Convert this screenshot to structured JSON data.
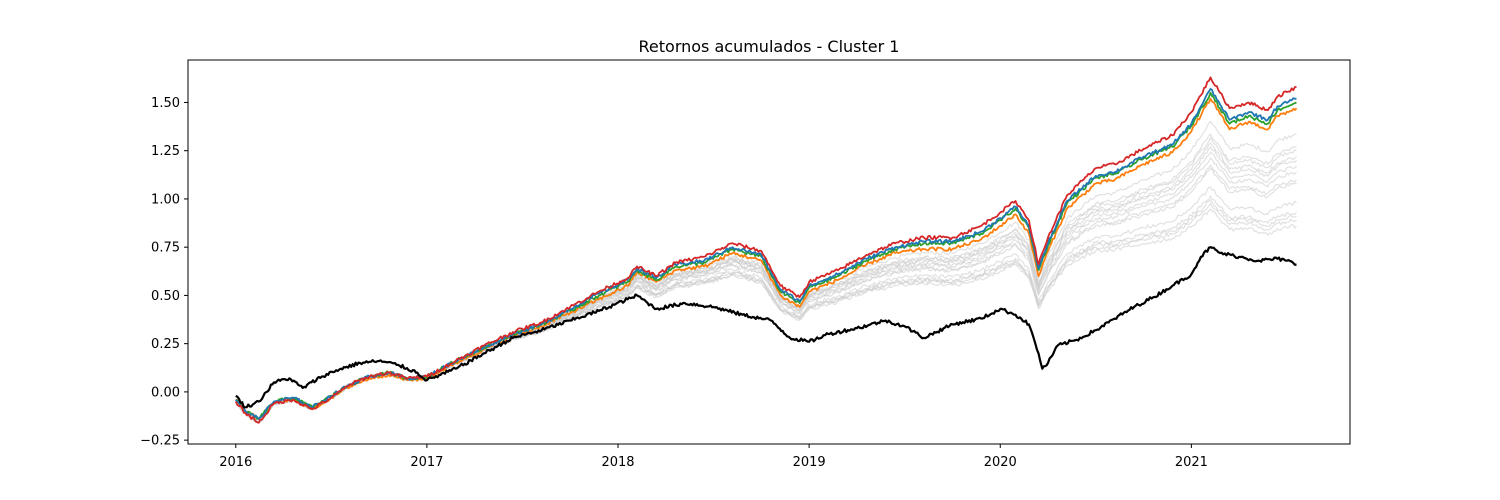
{
  "chart_data": {
    "type": "line",
    "title": "Retornos acumulados - Cluster 1",
    "xlabel": "",
    "ylabel": "",
    "xlim": [
      2015.75,
      2021.83
    ],
    "ylim": [
      -0.27,
      1.72
    ],
    "x_ticks": [
      2016,
      2017,
      2018,
      2019,
      2020,
      2021
    ],
    "x_tick_labels": [
      "2016",
      "2017",
      "2018",
      "2019",
      "2020",
      "2021"
    ],
    "y_ticks": [
      -0.25,
      0.0,
      0.25,
      0.5,
      0.75,
      1.0,
      1.25,
      1.5
    ],
    "y_tick_labels": [
      "−0.25",
      "0.00",
      "0.25",
      "0.50",
      "0.75",
      "1.00",
      "1.25",
      "1.50"
    ],
    "legend": "none",
    "grid": false,
    "background_series": {
      "color": "#c8c8c8",
      "count": 14,
      "end_values": [
        1.34,
        1.27,
        1.25,
        1.22,
        1.2,
        1.17,
        1.14,
        1.1,
        1.08,
        0.98,
        0.93,
        0.91,
        0.89,
        0.86
      ]
    },
    "series": [
      {
        "color": "#000000",
        "x": [
          2016.0,
          2016.05,
          2016.12,
          2016.2,
          2016.28,
          2016.35,
          2016.45,
          2016.55,
          2016.65,
          2016.75,
          2016.85,
          2016.95,
          2017.0,
          2017.15,
          2017.3,
          2017.45,
          2017.6,
          2017.75,
          2017.9,
          2018.05,
          2018.1,
          2018.2,
          2018.35,
          2018.5,
          2018.65,
          2018.8,
          2018.9,
          2019.0,
          2019.1,
          2019.25,
          2019.4,
          2019.5,
          2019.6,
          2019.75,
          2019.9,
          2020.0,
          2020.08,
          2020.15,
          2020.2,
          2020.22,
          2020.25,
          2020.3,
          2020.4,
          2020.5,
          2020.6,
          2020.7,
          2020.8,
          2020.9,
          2021.0,
          2021.05,
          2021.1,
          2021.15,
          2021.25,
          2021.35,
          2021.45,
          2021.5,
          2021.55
        ],
        "y": [
          -0.02,
          -0.08,
          -0.05,
          0.05,
          0.07,
          0.02,
          0.08,
          0.12,
          0.15,
          0.16,
          0.14,
          0.1,
          0.06,
          0.12,
          0.2,
          0.28,
          0.32,
          0.37,
          0.42,
          0.48,
          0.5,
          0.43,
          0.46,
          0.44,
          0.4,
          0.37,
          0.28,
          0.26,
          0.3,
          0.33,
          0.37,
          0.34,
          0.28,
          0.35,
          0.38,
          0.43,
          0.4,
          0.35,
          0.2,
          0.12,
          0.15,
          0.24,
          0.27,
          0.32,
          0.38,
          0.44,
          0.49,
          0.55,
          0.61,
          0.7,
          0.75,
          0.72,
          0.7,
          0.68,
          0.69,
          0.68,
          0.66
        ]
      },
      {
        "color": "#ff7f0e",
        "x": [
          2016.0,
          2016.05,
          2016.12,
          2016.2,
          2016.3,
          2016.4,
          2016.5,
          2016.6,
          2016.7,
          2016.8,
          2016.9,
          2017.0,
          2017.15,
          2017.3,
          2017.45,
          2017.6,
          2017.75,
          2017.9,
          2018.05,
          2018.1,
          2018.2,
          2018.3,
          2018.45,
          2018.6,
          2018.75,
          2018.85,
          2018.95,
          2019.0,
          2019.15,
          2019.3,
          2019.45,
          2019.6,
          2019.75,
          2019.9,
          2020.0,
          2020.08,
          2020.15,
          2020.2,
          2020.25,
          2020.35,
          2020.5,
          2020.6,
          2020.75,
          2020.9,
          2021.0,
          2021.1,
          2021.15,
          2021.2,
          2021.3,
          2021.4,
          2021.45,
          2021.55
        ],
        "y": [
          -0.04,
          -0.1,
          -0.14,
          -0.06,
          -0.04,
          -0.09,
          -0.03,
          0.03,
          0.07,
          0.09,
          0.06,
          0.07,
          0.15,
          0.22,
          0.29,
          0.34,
          0.41,
          0.48,
          0.55,
          0.62,
          0.57,
          0.63,
          0.65,
          0.72,
          0.68,
          0.5,
          0.44,
          0.52,
          0.58,
          0.66,
          0.72,
          0.74,
          0.74,
          0.79,
          0.86,
          0.92,
          0.82,
          0.6,
          0.73,
          0.95,
          1.08,
          1.1,
          1.18,
          1.24,
          1.35,
          1.52,
          1.44,
          1.36,
          1.4,
          1.36,
          1.43,
          1.47
        ]
      },
      {
        "color": "#2ca02c",
        "x": [
          2016.0,
          2016.05,
          2016.12,
          2016.2,
          2016.3,
          2016.4,
          2016.5,
          2016.6,
          2016.7,
          2016.8,
          2016.9,
          2017.0,
          2017.15,
          2017.3,
          2017.45,
          2017.6,
          2017.75,
          2017.9,
          2018.05,
          2018.1,
          2018.2,
          2018.3,
          2018.45,
          2018.6,
          2018.75,
          2018.85,
          2018.95,
          2019.0,
          2019.15,
          2019.3,
          2019.45,
          2019.6,
          2019.75,
          2019.9,
          2020.0,
          2020.08,
          2020.15,
          2020.2,
          2020.25,
          2020.35,
          2020.5,
          2020.6,
          2020.75,
          2020.9,
          2021.0,
          2021.1,
          2021.15,
          2021.2,
          2021.3,
          2021.4,
          2021.45,
          2021.55
        ],
        "y": [
          -0.04,
          -0.1,
          -0.14,
          -0.05,
          -0.03,
          -0.08,
          -0.02,
          0.04,
          0.08,
          0.1,
          0.07,
          0.08,
          0.16,
          0.23,
          0.3,
          0.35,
          0.42,
          0.5,
          0.57,
          0.63,
          0.58,
          0.65,
          0.67,
          0.74,
          0.7,
          0.52,
          0.46,
          0.54,
          0.6,
          0.68,
          0.74,
          0.77,
          0.77,
          0.82,
          0.89,
          0.95,
          0.85,
          0.63,
          0.76,
          0.98,
          1.11,
          1.13,
          1.21,
          1.27,
          1.38,
          1.55,
          1.47,
          1.39,
          1.43,
          1.39,
          1.46,
          1.5
        ]
      },
      {
        "color": "#1f77b4",
        "x": [
          2016.0,
          2016.05,
          2016.12,
          2016.2,
          2016.3,
          2016.4,
          2016.5,
          2016.6,
          2016.7,
          2016.8,
          2016.9,
          2017.0,
          2017.15,
          2017.3,
          2017.45,
          2017.6,
          2017.75,
          2017.9,
          2018.05,
          2018.1,
          2018.2,
          2018.3,
          2018.45,
          2018.6,
          2018.75,
          2018.85,
          2018.95,
          2019.0,
          2019.15,
          2019.3,
          2019.45,
          2019.6,
          2019.75,
          2019.9,
          2020.0,
          2020.08,
          2020.15,
          2020.2,
          2020.25,
          2020.35,
          2020.5,
          2020.6,
          2020.75,
          2020.9,
          2021.0,
          2021.1,
          2021.15,
          2021.2,
          2021.3,
          2021.4,
          2021.45,
          2021.55
        ],
        "y": [
          -0.04,
          -0.1,
          -0.14,
          -0.05,
          -0.03,
          -0.08,
          -0.02,
          0.04,
          0.08,
          0.1,
          0.07,
          0.08,
          0.16,
          0.23,
          0.3,
          0.35,
          0.43,
          0.51,
          0.58,
          0.64,
          0.59,
          0.66,
          0.68,
          0.75,
          0.71,
          0.53,
          0.47,
          0.55,
          0.61,
          0.69,
          0.75,
          0.78,
          0.78,
          0.83,
          0.9,
          0.96,
          0.86,
          0.64,
          0.77,
          0.99,
          1.12,
          1.14,
          1.22,
          1.28,
          1.39,
          1.57,
          1.49,
          1.41,
          1.45,
          1.41,
          1.48,
          1.52
        ]
      },
      {
        "color": "#d62728",
        "x": [
          2016.0,
          2016.05,
          2016.12,
          2016.2,
          2016.3,
          2016.4,
          2016.5,
          2016.6,
          2016.7,
          2016.8,
          2016.9,
          2017.0,
          2017.15,
          2017.3,
          2017.45,
          2017.6,
          2017.75,
          2017.9,
          2018.05,
          2018.1,
          2018.2,
          2018.3,
          2018.45,
          2018.6,
          2018.75,
          2018.85,
          2018.95,
          2019.0,
          2019.15,
          2019.3,
          2019.45,
          2019.6,
          2019.75,
          2019.9,
          2020.0,
          2020.08,
          2020.15,
          2020.2,
          2020.25,
          2020.35,
          2020.5,
          2020.6,
          2020.75,
          2020.9,
          2021.0,
          2021.1,
          2021.15,
          2021.2,
          2021.3,
          2021.4,
          2021.45,
          2021.55
        ],
        "y": [
          -0.05,
          -0.11,
          -0.16,
          -0.06,
          -0.04,
          -0.09,
          -0.03,
          0.04,
          0.08,
          0.1,
          0.07,
          0.08,
          0.16,
          0.24,
          0.31,
          0.36,
          0.44,
          0.52,
          0.59,
          0.65,
          0.6,
          0.67,
          0.7,
          0.77,
          0.73,
          0.55,
          0.49,
          0.57,
          0.63,
          0.71,
          0.77,
          0.8,
          0.8,
          0.86,
          0.93,
          0.99,
          0.89,
          0.66,
          0.8,
          1.02,
          1.16,
          1.18,
          1.26,
          1.33,
          1.45,
          1.63,
          1.55,
          1.47,
          1.5,
          1.46,
          1.53,
          1.58
        ]
      }
    ]
  }
}
